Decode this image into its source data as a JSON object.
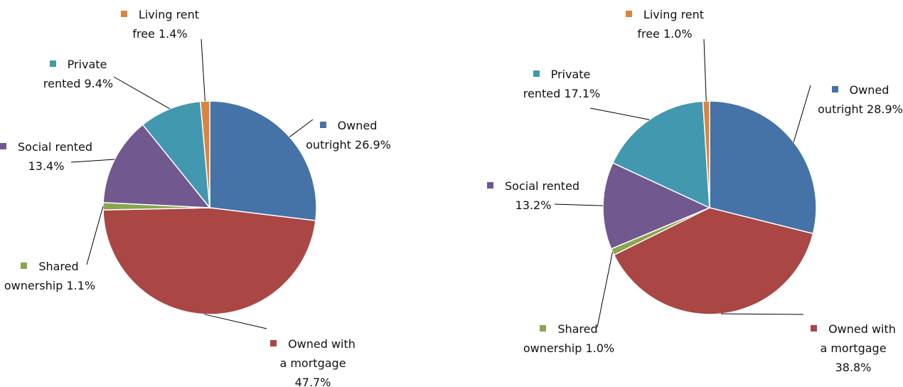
{
  "chart_data": [
    {
      "type": "pie",
      "categories": [
        "Owned outright",
        "Owned with a mortgage",
        "Shared ownership",
        "Social rented",
        "Private rented",
        "Living rent free"
      ],
      "values": [
        26.9,
        47.7,
        1.1,
        13.4,
        9.4,
        1.4
      ],
      "value_labels": [
        "26.9%",
        "47.7%",
        "1.1%",
        "13.4%",
        "9.4%",
        "1.4%"
      ],
      "colors": [
        "#4572a7",
        "#aa4643",
        "#89a54e",
        "#71588f",
        "#4198af",
        "#db843d"
      ]
    },
    {
      "type": "pie",
      "categories": [
        "Owned outright",
        "Owned with a mortgage",
        "Shared ownership",
        "Social rented",
        "Private rented",
        "Living rent free"
      ],
      "values": [
        28.9,
        38.8,
        1.0,
        13.2,
        17.1,
        1.0
      ],
      "value_labels": [
        "28.9%",
        "38.8%",
        "1.0%",
        "13.2%",
        "17.1%",
        "1.0%"
      ],
      "colors": [
        "#4572a7",
        "#aa4643",
        "#89a54e",
        "#71588f",
        "#4198af",
        "#db843d"
      ]
    }
  ]
}
